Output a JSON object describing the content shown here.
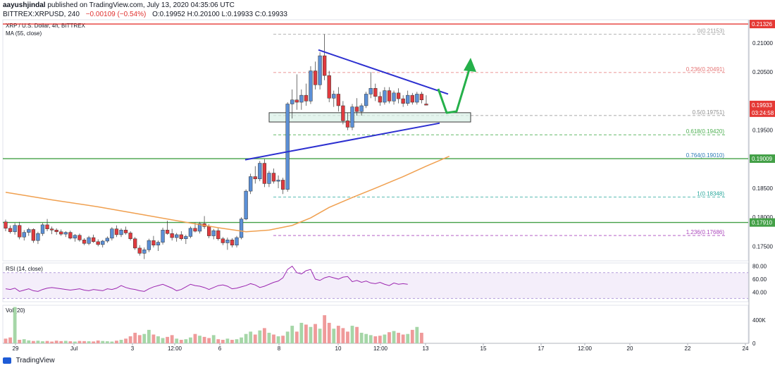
{
  "header": {
    "author": "aayushjindal",
    "published": "published on TradingView.com, July 13, 2020 04:35:06 UTC",
    "symbol_line": "BITTREX:XRPUSD, 240",
    "change": "−0.00109 (−0.54%)",
    "ohlc": "O:0.19952 H:0.20100 L:0.19933 C:0.19933",
    "pair_title": "XRP / U.S. Dollar, 4h, BITTREX",
    "ma_label": "MA (55, close)"
  },
  "footer": {
    "brand": "TradingView"
  },
  "colors": {
    "up": "#5b8fd6",
    "down": "#e03a3e",
    "ma": "#f0a050",
    "trendline": "#2c2fd0",
    "arrow": "#25b04a",
    "res_line": "#e53935",
    "sup_line": "#43a047",
    "rsi": "#9c27b0",
    "vol_up": "#a5d6a7",
    "vol_down": "#ef9a9a"
  },
  "chart_data": [
    {
      "type": "candlestick",
      "title": "XRP / U.S. Dollar, 4h, BITTREX",
      "ylim": [
        0.1725,
        0.214
      ],
      "y_ticks": [
        "0.21000",
        "0.20500",
        "0.19500",
        "0.18500",
        "0.18000",
        "0.17500"
      ],
      "x_ticks": [
        "29",
        "Jul",
        "3",
        "12:00",
        "6",
        "8",
        "10",
        "12:00",
        "13",
        "15",
        "17",
        "12:00",
        "20",
        "22",
        "24"
      ],
      "price_labels": [
        {
          "value": 0.21326,
          "text": "0.21326",
          "color": "#e53935"
        },
        {
          "value": 0.19933,
          "text": "0.19933",
          "color": "#e53935"
        },
        {
          "value": 0.198,
          "text": "03:24:58",
          "color": "#e53935"
        },
        {
          "value": 0.19009,
          "text": "0.19009",
          "color": "#43a047"
        },
        {
          "value": 0.1791,
          "text": "0.17910",
          "color": "#43a047"
        }
      ],
      "horizontal_lines": [
        {
          "value": 0.21326,
          "kind": "resistance"
        },
        {
          "value": 0.19009,
          "kind": "support"
        },
        {
          "value": 0.1791,
          "kind": "support"
        }
      ],
      "fibonacci": [
        {
          "level": "0",
          "text": "0(0.21153)",
          "value": 0.21153,
          "color": "#9e9e9e"
        },
        {
          "level": "0.236",
          "text": "0.236(0.20491)",
          "value": 0.20491,
          "color": "#e57373"
        },
        {
          "level": "0.5",
          "text": "0.5(0.19751)",
          "value": 0.19751,
          "color": "#8d8d8d"
        },
        {
          "level": "0.618",
          "text": "0.618(0.19420)",
          "value": 0.1942,
          "color": "#4caf50"
        },
        {
          "level": "0.764",
          "text": "0.764(0.19010)",
          "value": 0.1901,
          "color": "#2c7bb6"
        },
        {
          "level": "1",
          "text": "1(0.18348)",
          "value": 0.18348,
          "color": "#26a69a"
        },
        {
          "level": "1.236",
          "text": "1.236(0.17686)",
          "value": 0.17686,
          "color": "#ab47bc"
        }
      ],
      "candles": [
        [
          0.1792,
          0.1796,
          0.1776,
          0.1781
        ],
        [
          0.1781,
          0.1786,
          0.1772,
          0.1775
        ],
        [
          0.1775,
          0.179,
          0.177,
          0.1786
        ],
        [
          0.1786,
          0.1792,
          0.1762,
          0.1766
        ],
        [
          0.1766,
          0.1778,
          0.176,
          0.1774
        ],
        [
          0.1774,
          0.1782,
          0.1768,
          0.1779
        ],
        [
          0.1779,
          0.1781,
          0.1756,
          0.176
        ],
        [
          0.176,
          0.1775,
          0.1754,
          0.1772
        ],
        [
          0.1772,
          0.179,
          0.1768,
          0.1787
        ],
        [
          0.1787,
          0.1797,
          0.1776,
          0.178
        ],
        [
          0.178,
          0.1784,
          0.1771,
          0.1778
        ],
        [
          0.1778,
          0.1781,
          0.177,
          0.1775
        ],
        [
          0.1775,
          0.1779,
          0.1768,
          0.1771
        ],
        [
          0.1771,
          0.1776,
          0.1766,
          0.1774
        ],
        [
          0.1774,
          0.1777,
          0.1762,
          0.1764
        ],
        [
          0.1764,
          0.1771,
          0.1758,
          0.1769
        ],
        [
          0.1769,
          0.1772,
          0.1758,
          0.1761
        ],
        [
          0.1761,
          0.1764,
          0.1752,
          0.1755
        ],
        [
          0.1755,
          0.1768,
          0.1752,
          0.1765
        ],
        [
          0.1765,
          0.177,
          0.1756,
          0.1758
        ],
        [
          0.1758,
          0.1762,
          0.175,
          0.1753
        ],
        [
          0.1753,
          0.1761,
          0.1748,
          0.1759
        ],
        [
          0.1759,
          0.1767,
          0.1756,
          0.1764
        ],
        [
          0.1764,
          0.1783,
          0.176,
          0.178
        ],
        [
          0.178,
          0.1786,
          0.1766,
          0.177
        ],
        [
          0.177,
          0.1781,
          0.1766,
          0.1778
        ],
        [
          0.1778,
          0.1784,
          0.177,
          0.1773
        ],
        [
          0.1773,
          0.1776,
          0.176,
          0.1763
        ],
        [
          0.1763,
          0.1766,
          0.1744,
          0.1747
        ],
        [
          0.1747,
          0.1752,
          0.1734,
          0.1738
        ],
        [
          0.1738,
          0.1748,
          0.1728,
          0.1744
        ],
        [
          0.1744,
          0.1763,
          0.174,
          0.176
        ],
        [
          0.176,
          0.1768,
          0.1748,
          0.1752
        ],
        [
          0.1752,
          0.176,
          0.1742,
          0.1757
        ],
        [
          0.1757,
          0.1782,
          0.1753,
          0.1778
        ],
        [
          0.1778,
          0.1794,
          0.177,
          0.1772
        ],
        [
          0.1772,
          0.178,
          0.176,
          0.1765
        ],
        [
          0.1765,
          0.1773,
          0.1758,
          0.177
        ],
        [
          0.177,
          0.1776,
          0.176,
          0.1763
        ],
        [
          0.1763,
          0.177,
          0.1754,
          0.1767
        ],
        [
          0.1767,
          0.1784,
          0.1764,
          0.1781
        ],
        [
          0.1781,
          0.1791,
          0.1774,
          0.1776
        ],
        [
          0.1776,
          0.1792,
          0.1772,
          0.1789
        ],
        [
          0.1789,
          0.1802,
          0.178,
          0.1784
        ],
        [
          0.1784,
          0.1788,
          0.1764,
          0.1768
        ],
        [
          0.1768,
          0.178,
          0.1762,
          0.1777
        ],
        [
          0.1777,
          0.1781,
          0.176,
          0.1763
        ],
        [
          0.1763,
          0.1766,
          0.1752,
          0.1756
        ],
        [
          0.1756,
          0.1765,
          0.1744,
          0.1761
        ],
        [
          0.1761,
          0.1764,
          0.1748,
          0.1752
        ],
        [
          0.1752,
          0.1768,
          0.1748,
          0.1765
        ],
        [
          0.1765,
          0.18,
          0.1762,
          0.1797
        ],
        [
          0.1797,
          0.1848,
          0.1795,
          0.1845
        ],
        [
          0.1845,
          0.1875,
          0.184,
          0.187
        ],
        [
          0.187,
          0.1888,
          0.1858,
          0.1866
        ],
        [
          0.1866,
          0.1897,
          0.1862,
          0.1893
        ],
        [
          0.1893,
          0.19,
          0.1852,
          0.1858
        ],
        [
          0.1858,
          0.188,
          0.1852,
          0.1876
        ],
        [
          0.1876,
          0.1884,
          0.1858,
          0.1862
        ],
        [
          0.1862,
          0.1872,
          0.185,
          0.1864
        ],
        [
          0.1864,
          0.1868,
          0.184,
          0.1848
        ],
        [
          0.1848,
          0.1998,
          0.1844,
          0.1995
        ],
        [
          0.1995,
          0.202,
          0.197,
          0.2002
        ],
        [
          0.2002,
          0.2046,
          0.1985,
          0.1998
        ],
        [
          0.1998,
          0.202,
          0.1985,
          0.201
        ],
        [
          0.201,
          0.203,
          0.1992,
          0.2
        ],
        [
          0.2,
          0.206,
          0.1995,
          0.2052
        ],
        [
          0.2052,
          0.2068,
          0.202,
          0.2028
        ],
        [
          0.2028,
          0.2084,
          0.202,
          0.2078
        ],
        [
          0.2078,
          0.2115,
          0.2036,
          0.2044
        ],
        [
          0.2044,
          0.2052,
          0.1998,
          0.2005
        ],
        [
          0.2005,
          0.2018,
          0.199,
          0.2012
        ],
        [
          0.2012,
          0.2024,
          0.1982,
          0.1992
        ],
        [
          0.1992,
          0.2,
          0.196,
          0.1966
        ],
        [
          0.1966,
          0.198,
          0.195,
          0.1955
        ],
        [
          0.1955,
          0.1995,
          0.195,
          0.199
        ],
        [
          0.199,
          0.2005,
          0.1975,
          0.1982
        ],
        [
          0.1982,
          0.1996,
          0.1975,
          0.1992
        ],
        [
          0.1992,
          0.2016,
          0.1988,
          0.2012
        ],
        [
          0.2012,
          0.205,
          0.2005,
          0.2022
        ],
        [
          0.2022,
          0.203,
          0.2,
          0.2008
        ],
        [
          0.2008,
          0.2016,
          0.1992,
          0.1998
        ],
        [
          0.1998,
          0.2024,
          0.1994,
          0.2018
        ],
        [
          0.2018,
          0.2024,
          0.1996,
          0.2
        ],
        [
          0.2,
          0.2018,
          0.1994,
          0.2014
        ],
        [
          0.2014,
          0.2022,
          0.1996,
          0.2004
        ],
        [
          0.2004,
          0.201,
          0.199,
          0.1996
        ],
        [
          0.1996,
          0.2018,
          0.1992,
          0.201
        ],
        [
          0.201,
          0.2014,
          0.1994,
          0.1998
        ],
        [
          0.1998,
          0.2016,
          0.1994,
          0.2012
        ],
        [
          0.2012,
          0.2016,
          0.1996,
          0.2002
        ],
        [
          0.1995,
          0.201,
          0.1993,
          0.1993
        ]
      ],
      "ma55": [
        [
          0,
          0.1843
        ],
        [
          10,
          0.183
        ],
        [
          20,
          0.1818
        ],
        [
          30,
          0.1804
        ],
        [
          40,
          0.179
        ],
        [
          46,
          0.1782
        ],
        [
          52,
          0.1775
        ],
        [
          57,
          0.1778
        ],
        [
          62,
          0.1786
        ],
        [
          66,
          0.1799
        ],
        [
          70,
          0.1817
        ],
        [
          75,
          0.1834
        ],
        [
          80,
          0.185
        ],
        [
          86,
          0.187
        ],
        [
          91,
          0.1888
        ],
        [
          96,
          0.1905
        ]
      ]
    },
    {
      "type": "line",
      "title": "RSI (14, close)",
      "ylim": [
        25,
        85
      ],
      "y_ticks": [
        "80.00",
        "60.00",
        "40.00"
      ],
      "band": [
        30,
        70
      ],
      "values": [
        45,
        44,
        46,
        41,
        43,
        45,
        42,
        41,
        44,
        46,
        47,
        46,
        45,
        44,
        43,
        44,
        45,
        43,
        42,
        44,
        43,
        42,
        45,
        44,
        46,
        50,
        47,
        45,
        44,
        42,
        41,
        45,
        48,
        50,
        52,
        49,
        46,
        42,
        44,
        48,
        52,
        50,
        49,
        47,
        44,
        47,
        50,
        51,
        49,
        45,
        46,
        48,
        50,
        53,
        51,
        47,
        49,
        52,
        55,
        57,
        62,
        75,
        80,
        70,
        68,
        73,
        75,
        60,
        58,
        62,
        64,
        62,
        60,
        63,
        64,
        56,
        58,
        55,
        57,
        54,
        53,
        55,
        52,
        50,
        54,
        52,
        53,
        52
      ]
    },
    {
      "type": "bar",
      "title": "Vol (20)",
      "ylim": [
        0,
        650000
      ],
      "y_ticks": [
        "400K",
        "0"
      ],
      "values": [
        80000,
        100000,
        620000,
        60000,
        70000,
        50000,
        40000,
        45000,
        35000,
        40000,
        30000,
        45000,
        38000,
        42000,
        35000,
        30000,
        40000,
        38000,
        35000,
        32000,
        48000,
        40000,
        35000,
        30000,
        45000,
        60000,
        80000,
        120000,
        180000,
        140000,
        160000,
        230000,
        150000,
        120000,
        90000,
        110000,
        140000,
        80000,
        60000,
        70000,
        100000,
        160000,
        130000,
        110000,
        90000,
        140000,
        70000,
        60000,
        80000,
        60000,
        70000,
        100000,
        160000,
        200000,
        150000,
        220000,
        260000,
        180000,
        150000,
        120000,
        130000,
        200000,
        300000,
        200000,
        350000,
        320000,
        280000,
        330000,
        250000,
        480000,
        350000,
        250000,
        300000,
        260000,
        200000,
        300000,
        280000,
        180000,
        160000,
        140000,
        120000,
        130000,
        150000,
        190000,
        210000,
        180000,
        150000,
        160000,
        230000,
        280000,
        180000
      ],
      "directions": "mixed"
    }
  ]
}
